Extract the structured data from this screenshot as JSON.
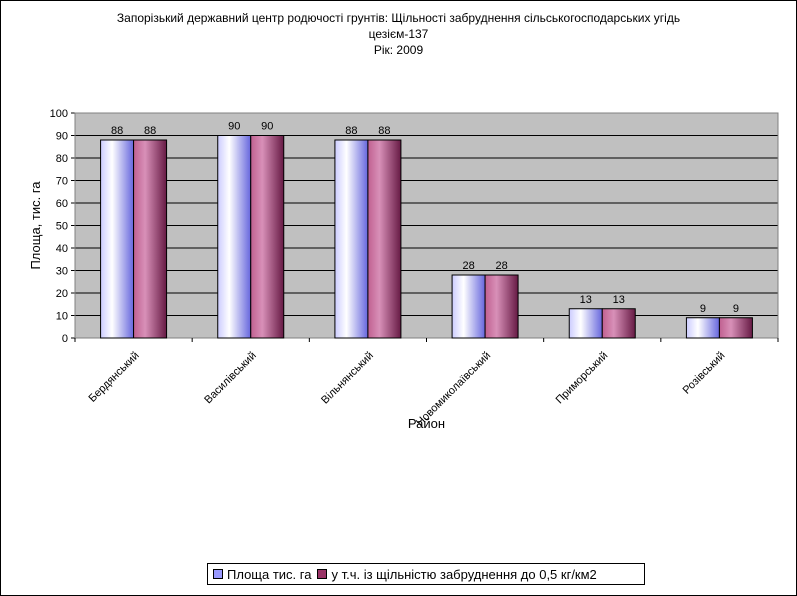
{
  "colors": {
    "plot_bg": "#c0c0c0",
    "gridline": "#000000",
    "series1": "#9999ff",
    "series2": "#993366"
  },
  "chart_data": {
    "type": "bar",
    "title_lines": [
      "Запорізький державний центр родючості грунтів: Щільності забруднення сільськогосподарських угідь",
      "цезієм-137",
      "Рік: 2009"
    ],
    "xlabel": "Район",
    "ylabel": "Площа, тис. га",
    "ylim": [
      0,
      100
    ],
    "yticks": [
      0,
      10,
      20,
      30,
      40,
      50,
      60,
      70,
      80,
      90,
      100
    ],
    "grid": true,
    "legend_position": "bottom",
    "categories": [
      "Бердянський",
      "Василівський",
      "Вільнянський",
      "Новомиколаївський",
      "Приморський",
      "Розівський"
    ],
    "series": [
      {
        "name": "Площа тис. га",
        "color": "#9999ff",
        "values": [
          88,
          90,
          88,
          28,
          13,
          9
        ]
      },
      {
        "name": "у т.ч. із щільністю забруднення до 0,5 кг/км2",
        "color": "#993366",
        "values": [
          88,
          90,
          88,
          28,
          13,
          9
        ]
      }
    ]
  }
}
